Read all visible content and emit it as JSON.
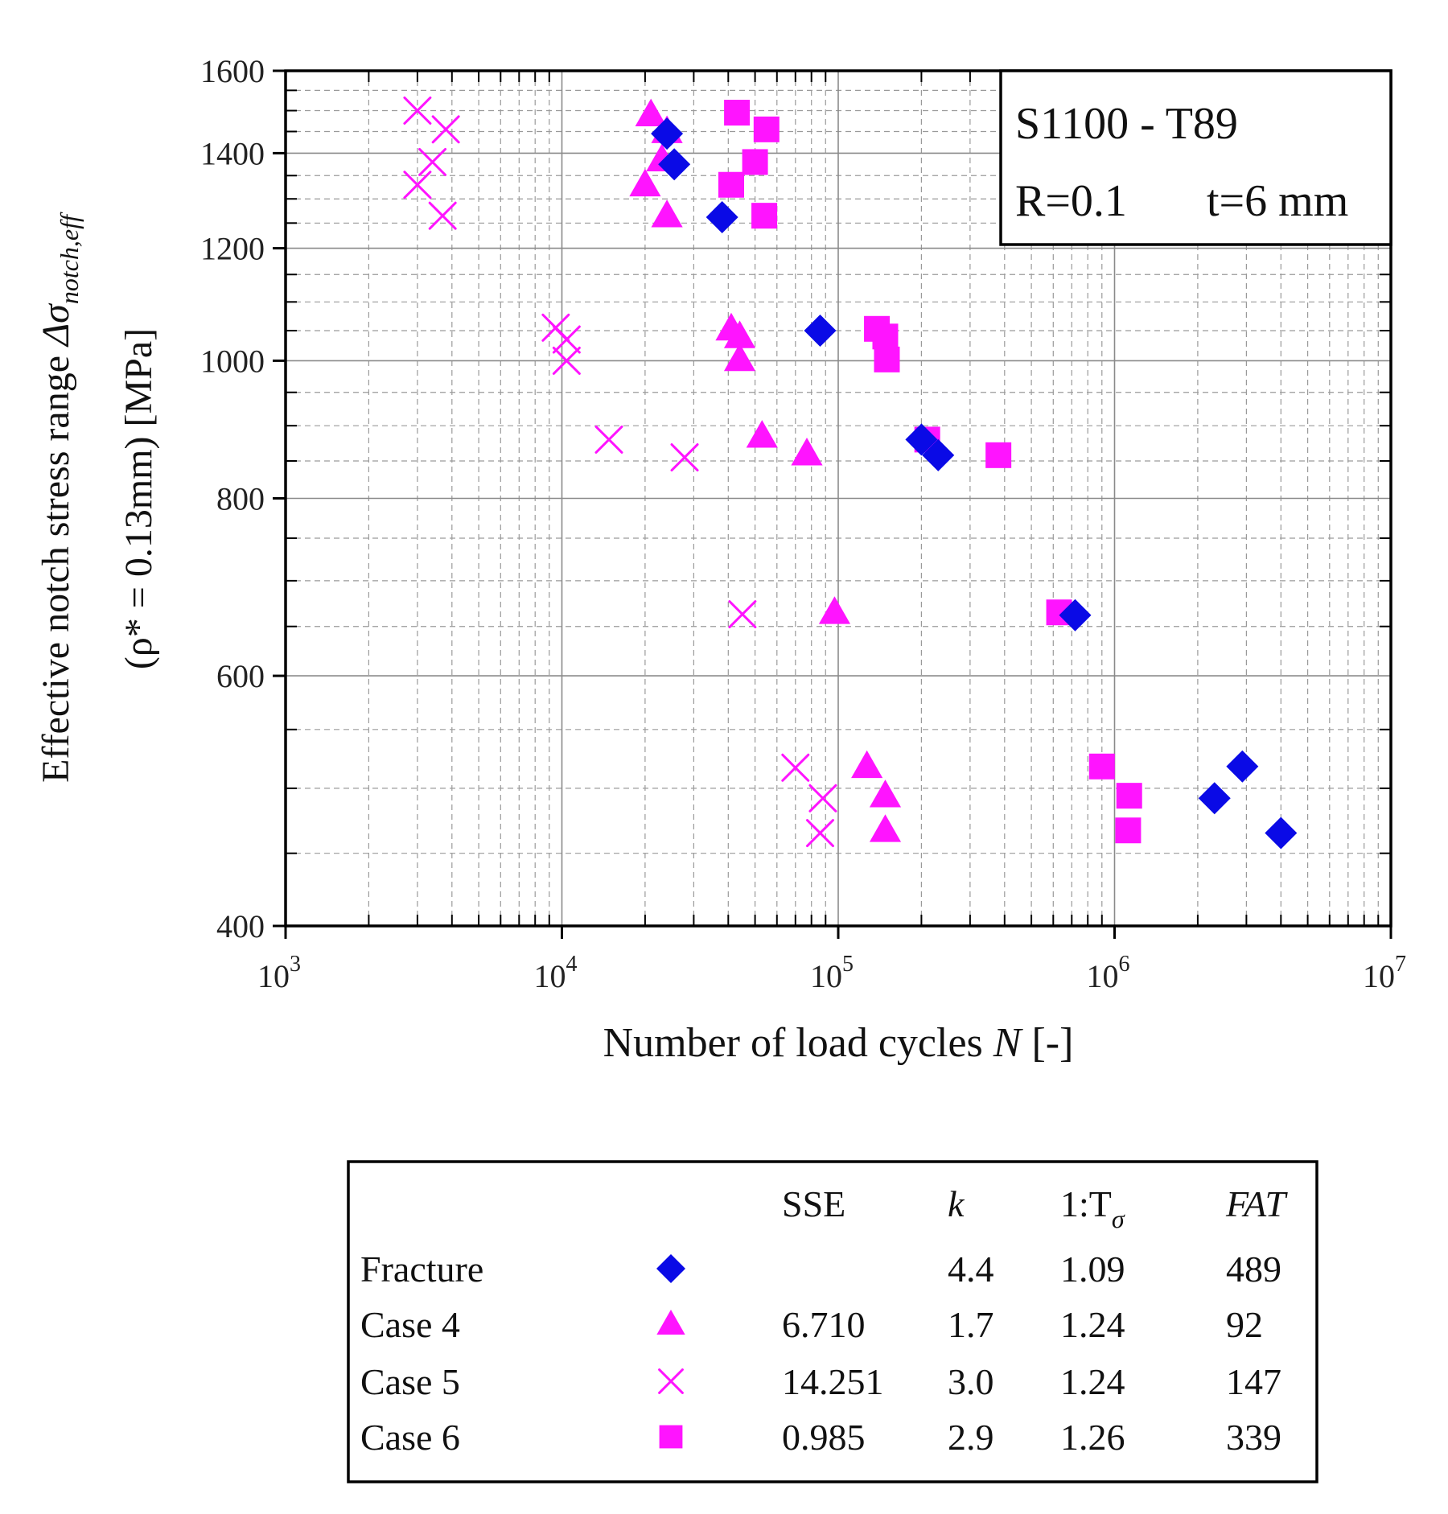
{
  "chart_data": {
    "type": "scatter",
    "xscale": "log",
    "yscale": "log",
    "xlim": [
      1000,
      10000000
    ],
    "ylim": [
      400,
      1600
    ],
    "xticks": [
      1000,
      10000,
      100000,
      1000000,
      10000000
    ],
    "xtick_labels": [
      "10",
      "10",
      "10",
      "10",
      "10"
    ],
    "xtick_exponents": [
      "3",
      "4",
      "5",
      "6",
      "7"
    ],
    "yticks": [
      400,
      600,
      800,
      1000,
      1200,
      1400,
      1600
    ],
    "ytick_labels": [
      "400",
      "600",
      "800",
      "1000",
      "1200",
      "1400",
      "1600"
    ],
    "xlabel": "Number of load cycles N [-]",
    "xlabel_main": "Number of load cycles ",
    "xlabel_var": "N",
    "xlabel_unit": " [-]",
    "ylabel_line1": "Effective notch stress range ",
    "ylabel_line1_sym": "Δσ",
    "ylabel_line1_sub": "notch,eff",
    "ylabel_line2": "(ρ* = 0.13mm) [MPa]",
    "grid": true,
    "info_box": {
      "line1": "S1100 - T89",
      "line2_a": "R=0.1",
      "line2_b": "t=6 mm",
      "position": "top-right"
    },
    "series": [
      {
        "name": "Fracture",
        "marker": "diamond",
        "color": "#0a0ae6",
        "points": [
          [
            24000,
            1445
          ],
          [
            25500,
            1375
          ],
          [
            38000,
            1262
          ],
          [
            86000,
            1050
          ],
          [
            200000,
            880
          ],
          [
            230000,
            858
          ],
          [
            720000,
            662
          ],
          [
            2300000,
            492
          ],
          [
            2900000,
            518
          ],
          [
            4000000,
            465
          ]
        ]
      },
      {
        "name": "Case 4",
        "marker": "triangle",
        "color": "#ff14ff",
        "points": [
          [
            21000,
            1490
          ],
          [
            24000,
            1450
          ],
          [
            23000,
            1385
          ],
          [
            20000,
            1330
          ],
          [
            24000,
            1265
          ],
          [
            41000,
            1053
          ],
          [
            44000,
            1040
          ],
          [
            44000,
            1002
          ],
          [
            53000,
            885
          ],
          [
            77000,
            860
          ],
          [
            97000,
            665
          ],
          [
            127000,
            518
          ],
          [
            148000,
            494
          ],
          [
            148000,
            467
          ]
        ]
      },
      {
        "name": "Case 5",
        "marker": "x",
        "color": "#ff14ff",
        "points": [
          [
            3000,
            1500
          ],
          [
            3800,
            1455
          ],
          [
            3400,
            1380
          ],
          [
            3000,
            1330
          ],
          [
            3700,
            1265
          ],
          [
            9500,
            1055
          ],
          [
            10400,
            1035
          ],
          [
            10400,
            1000
          ],
          [
            14800,
            880
          ],
          [
            27800,
            855
          ],
          [
            45000,
            663
          ],
          [
            70000,
            517
          ],
          [
            88000,
            492
          ],
          [
            86000,
            465
          ]
        ]
      },
      {
        "name": "Case 6",
        "marker": "square",
        "color": "#ff14ff",
        "points": [
          [
            43000,
            1495
          ],
          [
            55000,
            1455
          ],
          [
            50000,
            1380
          ],
          [
            41000,
            1330
          ],
          [
            54000,
            1265
          ],
          [
            138000,
            1053
          ],
          [
            148000,
            1040
          ],
          [
            150000,
            1002
          ],
          [
            210000,
            880
          ],
          [
            380000,
            858
          ],
          [
            630000,
            665
          ],
          [
            900000,
            518
          ],
          [
            1130000,
            494
          ],
          [
            1120000,
            467
          ]
        ]
      }
    ]
  },
  "legend": {
    "headers": {
      "sse": "SSE",
      "k": "k",
      "t_prefix": "1:T",
      "t_sub": "σ",
      "fat": "FAT"
    },
    "rows": [
      {
        "name": "Fracture",
        "marker": "diamond",
        "color": "#0a0ae6",
        "sse": "",
        "k": "4.4",
        "t": "1.09",
        "fat": "489"
      },
      {
        "name": "Case 4",
        "marker": "triangle",
        "color": "#ff14ff",
        "sse": "6.710",
        "k": "1.7",
        "t": "1.24",
        "fat": "92"
      },
      {
        "name": "Case 5",
        "marker": "x",
        "color": "#ff14ff",
        "sse": "14.251",
        "k": "3.0",
        "t": "1.24",
        "fat": "147"
      },
      {
        "name": "Case 6",
        "marker": "square",
        "color": "#ff14ff",
        "sse": "0.985",
        "k": "2.9",
        "t": "1.26",
        "fat": "339"
      }
    ]
  }
}
